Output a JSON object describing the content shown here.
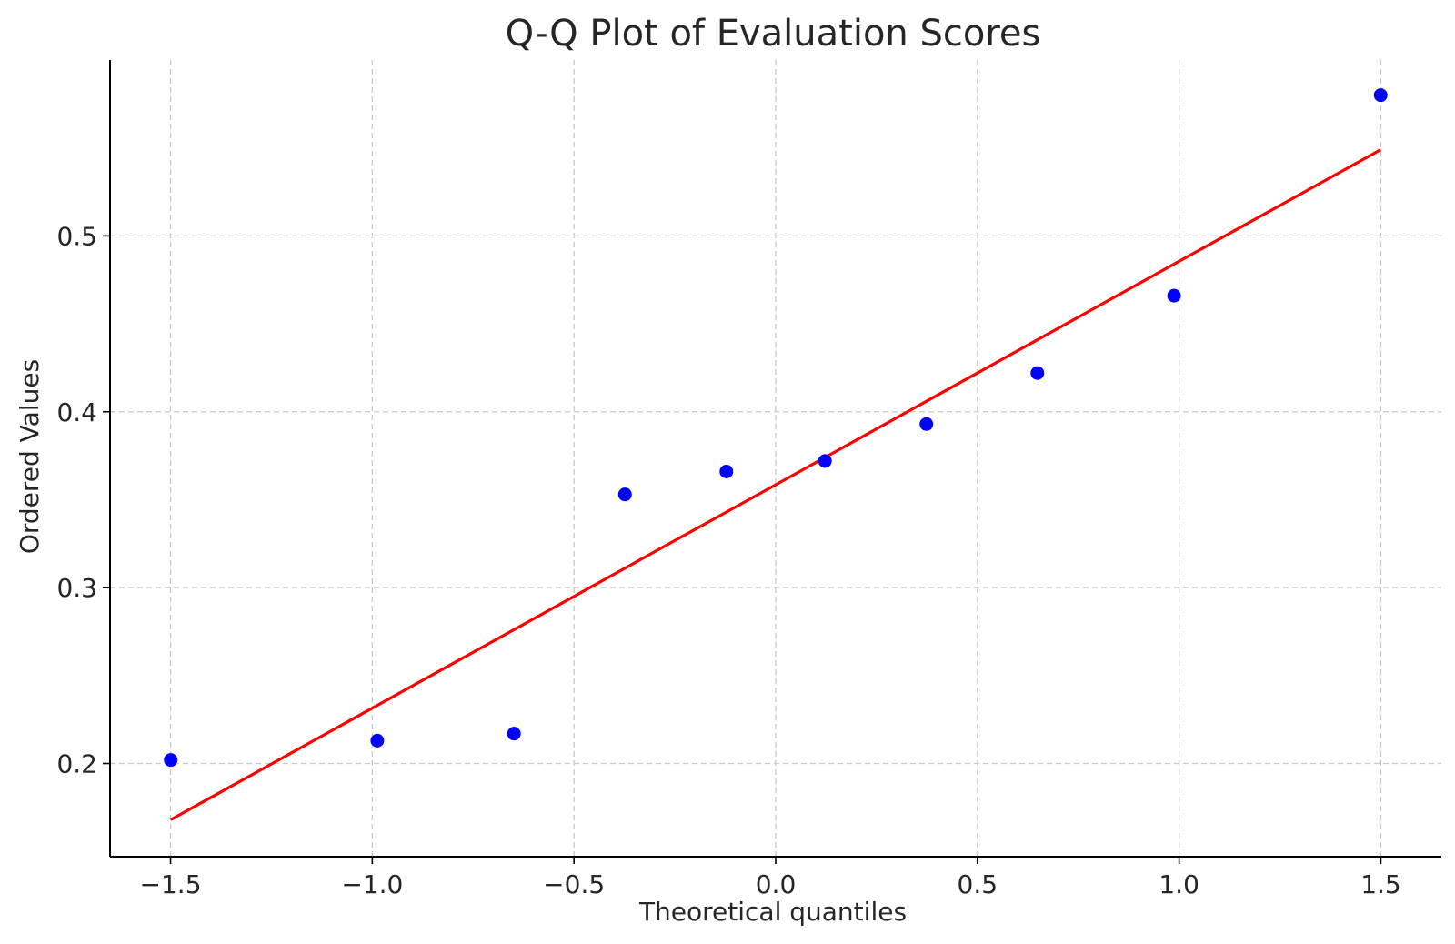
{
  "chart_data": {
    "type": "scatter",
    "title": "Q-Q Plot of Evaluation Scores",
    "xlabel": "Theoretical quantiles",
    "ylabel": "Ordered Values",
    "xlim": [
      -1.65,
      1.65
    ],
    "ylim": [
      0.147,
      0.6
    ],
    "x_ticks": [
      -1.5,
      -1.0,
      -0.5,
      0.0,
      0.5,
      1.0,
      1.5
    ],
    "x_tick_labels": [
      "−1.5",
      "−1.0",
      "−0.5",
      "0.0",
      "0.5",
      "1.0",
      "1.5"
    ],
    "y_ticks": [
      0.2,
      0.3,
      0.4,
      0.5
    ],
    "y_tick_labels": [
      "0.2",
      "0.3",
      "0.4",
      "0.5"
    ],
    "grid": true,
    "series": [
      {
        "kind": "points",
        "color": "#0000ff",
        "x": [
          -1.4996,
          -0.9875,
          -0.6487,
          -0.3736,
          -0.1222,
          0.1222,
          0.3736,
          0.6487,
          0.9875,
          1.4996
        ],
        "y": [
          0.202,
          0.213,
          0.217,
          0.353,
          0.366,
          0.372,
          0.393,
          0.422,
          0.466,
          0.58
        ]
      },
      {
        "kind": "fit-line",
        "color": "#ff0000",
        "x": [
          -1.4996,
          1.4996
        ],
        "y": [
          0.168,
          0.549
        ]
      }
    ]
  }
}
